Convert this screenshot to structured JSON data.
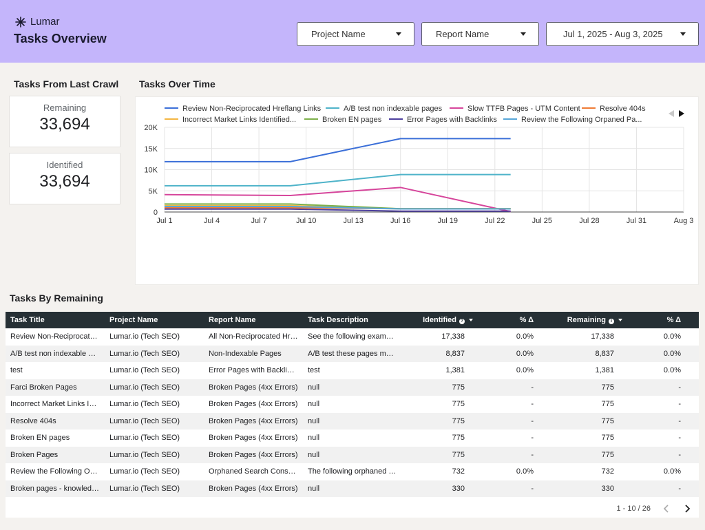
{
  "header": {
    "brand": "Lumar",
    "title": "Tasks Overview",
    "filters": [
      {
        "label": "Project Name"
      },
      {
        "label": "Report Name"
      },
      {
        "label": "Jul 1, 2025 - Aug 3, 2025"
      }
    ]
  },
  "crawl": {
    "title": "Tasks From Last Crawl",
    "remaining_label": "Remaining",
    "remaining_value": "33,694",
    "identified_label": "Identified",
    "identified_value": "33,694"
  },
  "chart_data": {
    "type": "line",
    "title": "Tasks Over Time",
    "x_ticks": [
      "Jul 1",
      "Jul 4",
      "Jul 7",
      "Jul 10",
      "Jul 13",
      "Jul 16",
      "Jul 19",
      "Jul 22",
      "Jul 25",
      "Jul 28",
      "Jul 31",
      "Aug 3"
    ],
    "x": [
      "Jul 1",
      "Jul 9",
      "Jul 16",
      "Jul 23"
    ],
    "ylim": [
      0,
      20000
    ],
    "y_ticks": [
      "0",
      "5K",
      "10K",
      "15K",
      "20K"
    ],
    "grid": true,
    "legend_position": "top",
    "series": [
      {
        "name": "Review Non-Reciprocated Hreflang Links",
        "color": "#3b6fd8",
        "values": [
          11900,
          11900,
          17338,
          17338
        ]
      },
      {
        "name": "A/B test non indexable pages",
        "color": "#4eb3c9",
        "values": [
          6200,
          6200,
          8837,
          8837
        ]
      },
      {
        "name": "Slow TTFB Pages - UTM Content",
        "color": "#d6459b",
        "values": [
          4100,
          3900,
          5800,
          100
        ]
      },
      {
        "name": "Resolve 404s",
        "color": "#ef7b35",
        "values": [
          1000,
          1000,
          775,
          775
        ]
      },
      {
        "name": "Incorrect Market Links Identified...",
        "color": "#f4b642",
        "values": [
          1500,
          1500,
          775,
          775
        ]
      },
      {
        "name": "Broken EN pages",
        "color": "#7db04a",
        "values": [
          1900,
          1900,
          775,
          775
        ]
      },
      {
        "name": "Error Pages with Backlinks",
        "color": "#4d3f9e",
        "values": [
          700,
          700,
          200,
          200
        ]
      },
      {
        "name": "Review the Following Orpaned Pa...",
        "color": "#57a6d8",
        "values": [
          1300,
          1300,
          732,
          732
        ]
      }
    ]
  },
  "tasks_table": {
    "title": "Tasks By Remaining",
    "columns": [
      "Task Title",
      "Project Name",
      "Report Name",
      "Task Description",
      "Identified",
      "% Δ",
      "Remaining",
      "% Δ"
    ],
    "rows": [
      [
        "Review Non-Reciprocated Hreflang Links",
        "Lumar.io (Tech SEO)",
        "All Non-Reciprocated Hreflang Links",
        "See the following examples",
        "17,338",
        "0.0%",
        "17,338",
        "0.0%"
      ],
      [
        "A/B test non indexable pages",
        "Lumar.io (Tech SEO)",
        "Non-Indexable Pages",
        "A/B test these pages make",
        "8,837",
        "0.0%",
        "8,837",
        "0.0%"
      ],
      [
        "test",
        "Lumar.io (Tech SEO)",
        "Error Pages with Backlinks",
        "test",
        "1,381",
        "0.0%",
        "1,381",
        "0.0%"
      ],
      [
        "Farci Broken Pages",
        "Lumar.io (Tech SEO)",
        "Broken Pages (4xx Errors)",
        "null",
        "775",
        "-",
        "775",
        "-"
      ],
      [
        "Incorrect Market Links Identified",
        "Lumar.io (Tech SEO)",
        "Broken Pages (4xx Errors)",
        "null",
        "775",
        "-",
        "775",
        "-"
      ],
      [
        "Resolve 404s",
        "Lumar.io (Tech SEO)",
        "Broken Pages (4xx Errors)",
        "null",
        "775",
        "-",
        "775",
        "-"
      ],
      [
        "Broken EN pages",
        "Lumar.io (Tech SEO)",
        "Broken Pages (4xx Errors)",
        "null",
        "775",
        "-",
        "775",
        "-"
      ],
      [
        "Broken Pages",
        "Lumar.io (Tech SEO)",
        "Broken Pages (4xx Errors)",
        "null",
        "775",
        "-",
        "775",
        "-"
      ],
      [
        "Review the Following Orphaned Pages",
        "Lumar.io (Tech SEO)",
        "Orphaned Search Console Pages",
        "The following orphaned pages",
        "732",
        "0.0%",
        "732",
        "0.0%"
      ],
      [
        "Broken pages - knowledge base",
        "Lumar.io (Tech SEO)",
        "Broken Pages (4xx Errors)",
        "null",
        "330",
        "-",
        "330",
        "-"
      ]
    ],
    "pagination": "1 - 10 / 26"
  }
}
